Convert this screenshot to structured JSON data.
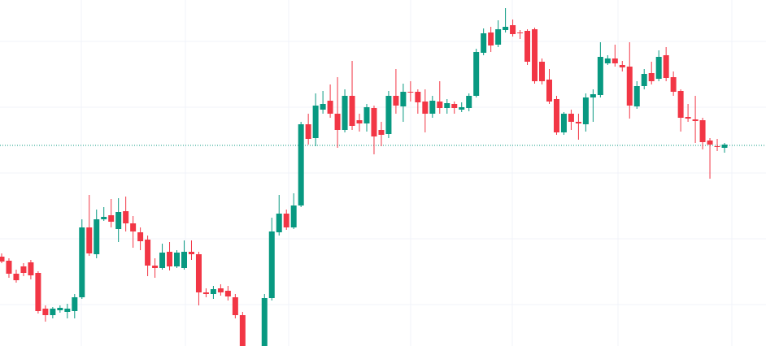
{
  "chart_data": {
    "type": "candlestick",
    "up_color": "#089981",
    "down_color": "#f23645",
    "grid": true,
    "grid_color": "#f0f3fa",
    "ylim": [
      0,
      426
    ],
    "yticks": [
      51,
      132,
      213,
      294,
      375
    ],
    "price_line": {
      "value": 247,
      "color": "#089981"
    },
    "open": [
      110,
      105,
      89,
      98,
      103,
      90,
      46,
      38,
      44,
      42,
      43,
      60,
      146,
      113,
      156,
      161,
      144,
      166,
      151,
      140,
      131,
      99,
      96,
      116,
      98,
      96,
      116,
      113,
      66,
      64,
      71,
      68,
      60,
      38,
      null,
      null,
      -20,
      59,
      140,
      163,
      146,
      173,
      273,
      256,
      291,
      302,
      286,
      266,
      308,
      278,
      274,
      293,
      266,
      261,
      308,
      295,
      313,
      313,
      301,
      286,
      301,
      293,
      298,
      291,
      293,
      308,
      361,
      386,
      371,
      389,
      395,
      386,
      388,
      390,
      350,
      328,
      304,
      263,
      286,
      276,
      273,
      306,
      309,
      348,
      354,
      346,
      344,
      295,
      320,
      336,
      329,
      358,
      331,
      314,
      282,
      279,
      278,
      253,
      246,
      244
    ],
    "high": [
      114,
      108,
      94,
      102,
      106,
      92,
      50,
      48,
      50,
      52,
      64,
      156,
      186,
      168,
      171,
      181,
      182,
      184,
      160,
      146,
      136,
      108,
      126,
      128,
      118,
      130,
      130,
      116,
      71,
      74,
      76,
      74,
      64,
      42,
      null,
      null,
      64,
      158,
      186,
      168,
      188,
      276,
      286,
      311,
      314,
      322,
      331,
      316,
      351,
      286,
      298,
      296,
      276,
      314,
      341,
      323,
      326,
      316,
      316,
      308,
      326,
      304,
      301,
      300,
      311,
      366,
      391,
      393,
      401,
      416,
      402,
      389,
      390,
      392,
      354,
      341,
      308,
      288,
      291,
      286,
      311,
      316,
      374,
      358,
      371,
      351,
      374,
      326,
      341,
      350,
      364,
      368,
      338,
      316,
      298,
      308,
      281,
      256,
      255,
      250
    ],
    "low": [
      102,
      84,
      78,
      86,
      82,
      40,
      30,
      34,
      41,
      34,
      34,
      58,
      111,
      108,
      154,
      146,
      128,
      141,
      121,
      118,
      86,
      84,
      94,
      93,
      96,
      94,
      106,
      50,
      60,
      58,
      62,
      56,
      34,
      -10,
      null,
      null,
      -30,
      56,
      136,
      143,
      144,
      171,
      248,
      246,
      286,
      281,
      244,
      263,
      266,
      264,
      264,
      236,
      246,
      256,
      286,
      276,
      301,
      286,
      263,
      281,
      286,
      286,
      286,
      288,
      289,
      306,
      358,
      362,
      368,
      386,
      381,
      378,
      346,
      323,
      322,
      298,
      260,
      260,
      266,
      254,
      264,
      276,
      306,
      346,
      344,
      338,
      280,
      292,
      316,
      322,
      326,
      326,
      308,
      264,
      276,
      250,
      242,
      206,
      240,
      238
    ],
    "close": [
      104,
      89,
      81,
      90,
      87,
      43,
      38,
      46,
      47,
      46,
      60,
      146,
      114,
      156,
      159,
      153,
      165,
      151,
      141,
      129,
      99,
      96,
      115,
      98,
      115,
      116,
      113,
      66,
      64,
      70,
      66,
      61,
      38,
      -5,
      null,
      null,
      59,
      141,
      163,
      146,
      173,
      273,
      255,
      296,
      298,
      286,
      266,
      308,
      271,
      274,
      294,
      258,
      260,
      308,
      296,
      313,
      312,
      300,
      286,
      302,
      293,
      299,
      293,
      294,
      308,
      362,
      385,
      370,
      390,
      393,
      384,
      385,
      350,
      326,
      326,
      301,
      263,
      286,
      276,
      274,
      306,
      310,
      356,
      354,
      348,
      343,
      296,
      320,
      335,
      326,
      356,
      330,
      313,
      281,
      280,
      277,
      251,
      248,
      245,
      248
    ]
  }
}
